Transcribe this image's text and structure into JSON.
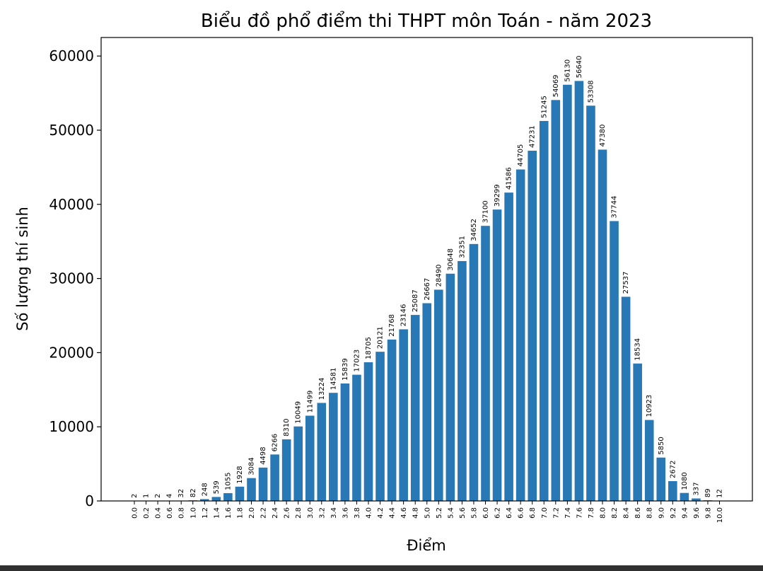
{
  "colors": {
    "bar": "#2878b5",
    "axis": "#000000",
    "background": "#ffffff",
    "bottom_strip": "#303030"
  },
  "chart_data": {
    "type": "bar",
    "title": "Biểu đồ phổ điểm thi THPT môn Toán - năm 2023",
    "xlabel": "Điểm",
    "ylabel": "Số lượng thí sinh",
    "ylim": [
      0,
      62500
    ],
    "yticks": [
      0,
      10000,
      20000,
      30000,
      40000,
      50000,
      60000
    ],
    "grid": false,
    "legend": "none",
    "categories": [
      "0.0",
      "0.2",
      "0.4",
      "0.6",
      "0.8",
      "1.0",
      "1.2",
      "1.4",
      "1.6",
      "1.8",
      "2.0",
      "2.2",
      "2.4",
      "2.6",
      "2.8",
      "3.0",
      "3.2",
      "3.4",
      "3.6",
      "3.8",
      "4.0",
      "4.2",
      "4.4",
      "4.6",
      "4.8",
      "5.0",
      "5.2",
      "5.4",
      "5.6",
      "5.8",
      "6.0",
      "6.2",
      "6.4",
      "6.6",
      "6.8",
      "7.0",
      "7.2",
      "7.4",
      "7.6",
      "7.8",
      "8.0",
      "8.2",
      "8.4",
      "8.6",
      "8.8",
      "9.0",
      "9.2",
      "9.4",
      "9.6",
      "9.8",
      "10.0"
    ],
    "values": [
      2,
      1,
      2,
      4,
      32,
      82,
      248,
      539,
      1055,
      1928,
      3084,
      4498,
      6266,
      8310,
      10049,
      11499,
      13224,
      14581,
      15839,
      17023,
      18705,
      20121,
      21768,
      23146,
      25087,
      26667,
      28490,
      30648,
      32351,
      34652,
      37100,
      39299,
      41586,
      44705,
      47231,
      51245,
      54069,
      56130,
      56640,
      53308,
      47380,
      37744,
      27537,
      18534,
      10923,
      5850,
      2672,
      1080,
      337,
      89,
      12
    ]
  }
}
